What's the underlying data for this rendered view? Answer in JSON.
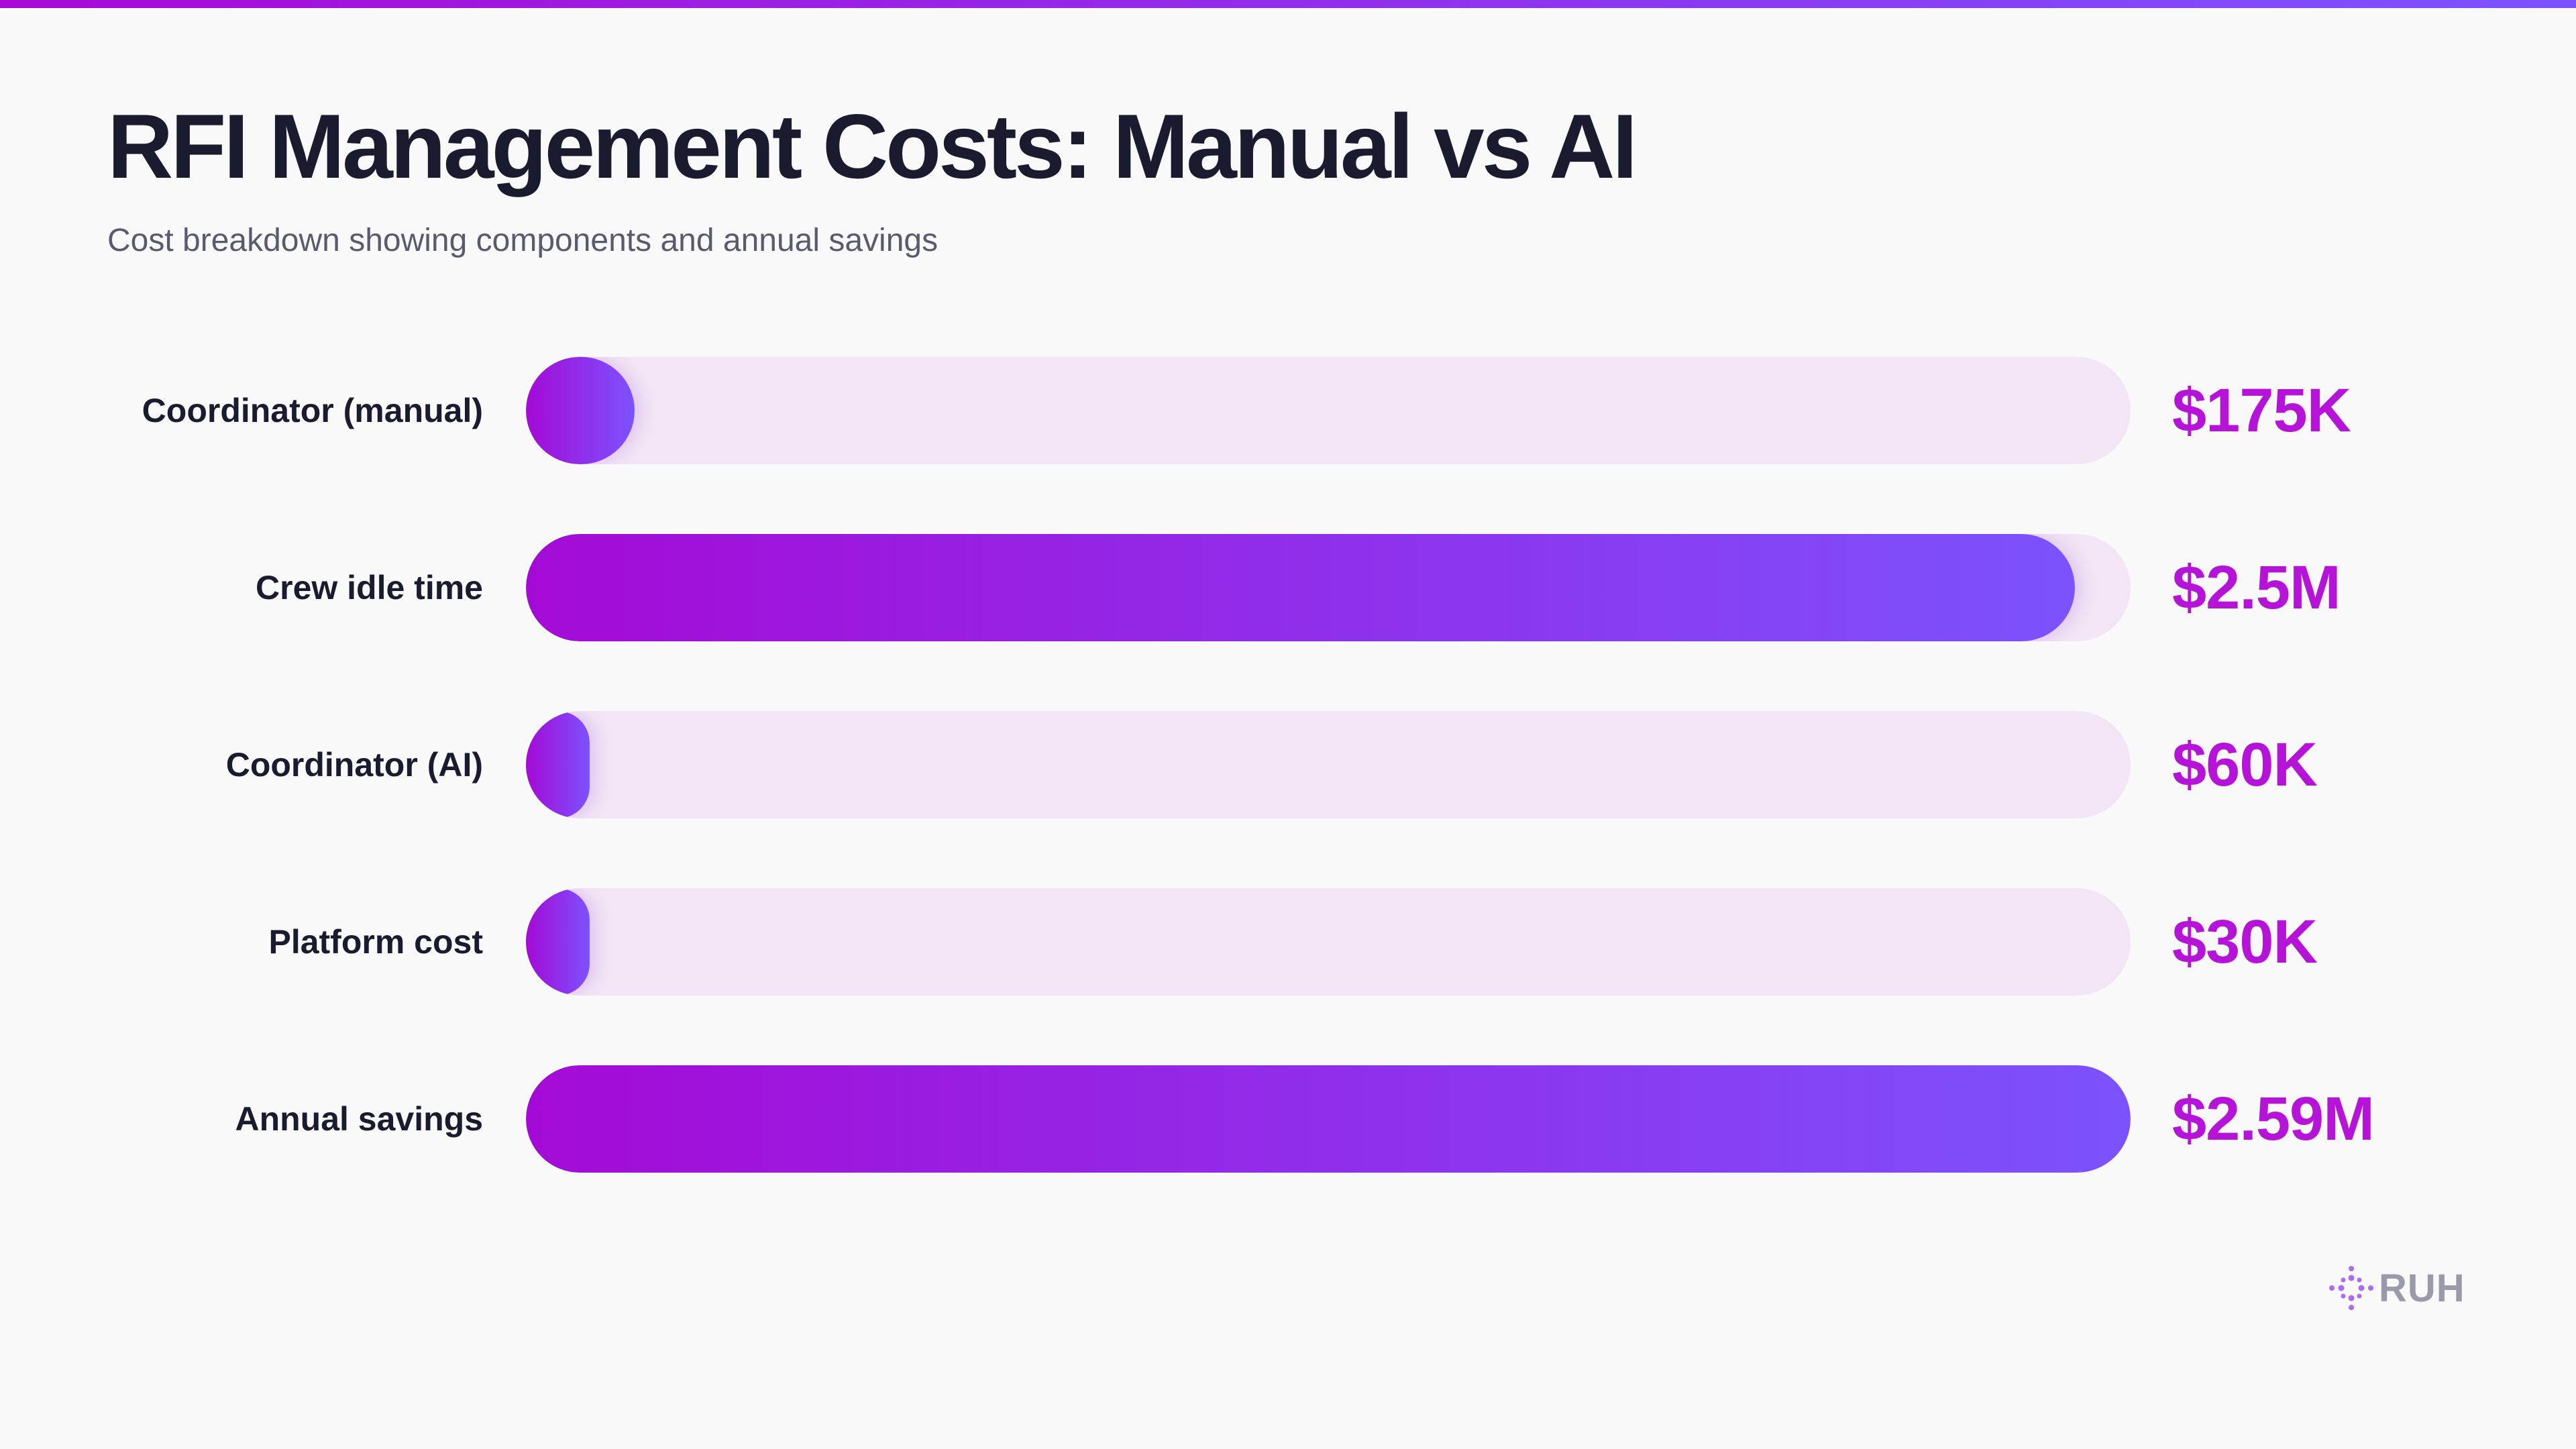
{
  "title": "RFI Management Costs: Manual vs AI",
  "subtitle": "Cost breakdown showing components and annual savings",
  "brand": {
    "name": "RUH",
    "icon": "sparkle-dots-icon"
  },
  "colors": {
    "accent_start": "#a40ad6",
    "accent_end": "#7c52ff",
    "value_text": "#b613d9",
    "track": "#f2e5f5"
  },
  "chart_data": {
    "type": "bar",
    "orientation": "horizontal",
    "categories": [
      "Coordinator (manual)",
      "Crew idle time",
      "Coordinator (AI)",
      "Platform cost",
      "Annual savings"
    ],
    "values": [
      175000,
      2500000,
      60000,
      30000,
      2590000
    ],
    "value_labels": [
      "$175K",
      "$2.5M",
      "$60K",
      "$30K",
      "$2.59M"
    ],
    "xlim": [
      0,
      2590000
    ],
    "grid": false,
    "legend": "none"
  }
}
